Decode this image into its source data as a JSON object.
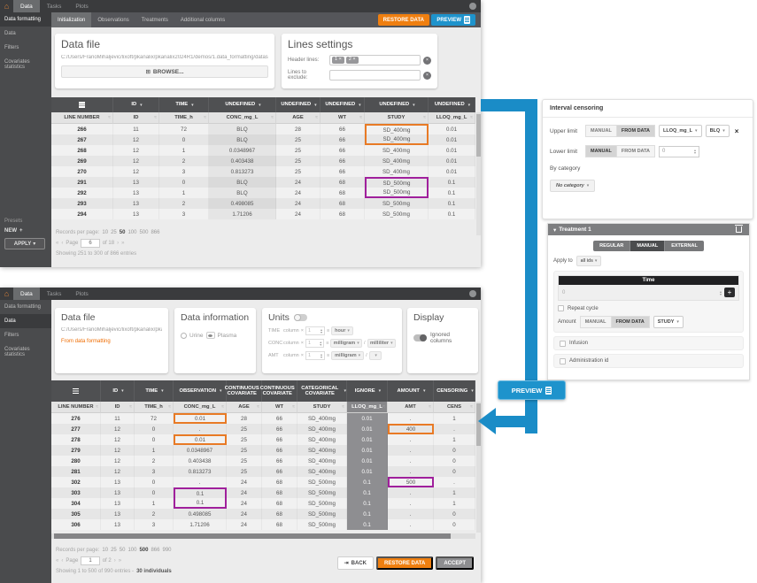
{
  "colors": {
    "orange": "#ef7f10",
    "blue": "#1e93cc",
    "arrow_blue": "#1a8cc7",
    "highlight_orange": "#e87a25",
    "highlight_purple": "#a0209c"
  },
  "topbar": {
    "home_icon": "⌂",
    "tabs": [
      "Data",
      "Tasks",
      "Plots"
    ],
    "active_tab": "Data"
  },
  "nav": {
    "first": "«",
    "prev": "‹",
    "next": "›",
    "last": "»"
  },
  "top_panel": {
    "sidebar": {
      "items": [
        "Data formatting",
        "Data",
        "Filters",
        "Covariates statistics"
      ],
      "active": "Data formatting",
      "presets_label": "Presets",
      "new_label": "NEW",
      "new_plus": "+",
      "apply_label": "APPLY",
      "apply_caret": "▾"
    },
    "subtabs": {
      "items": [
        "Initialization",
        "Observations",
        "Treatments",
        "Additional columns"
      ],
      "active": "Initialization"
    },
    "restore_label": "RESTORE DATA",
    "preview_label": "PREVIEW",
    "data_file": {
      "title": "Data file",
      "path": "C:/Users/FranoMihaljevic/lixoft/pkanalix/pkanalix2024R1/demos/1.data_formatting/datasets/units_BLQ_tags_data...",
      "browse_icon": "⊞",
      "browse_label": "BROWSE..."
    },
    "lines_settings": {
      "title": "Lines settings",
      "header_lines_label": "Header lines:",
      "header_chips": [
        "1 ×",
        "2 ×"
      ],
      "exclude_label": "Lines to exclude:",
      "clear_icon": "×"
    },
    "table": {
      "group_headers": [
        {
          "icon": "menu",
          "caret": false
        },
        {
          "label": "ID",
          "caret": true
        },
        {
          "label": "TIME",
          "caret": true
        },
        {
          "label": "UNDEFINED",
          "caret": true
        },
        {
          "label": "UNDEFINED",
          "caret": true
        },
        {
          "label": "UNDEFINED",
          "caret": true
        },
        {
          "label": "UNDEFINED",
          "caret": true
        },
        {
          "label": "UNDEFINED",
          "caret": true
        }
      ],
      "columns": [
        "LINE NUMBER",
        "ID",
        "TIME_h",
        "CONC_mg_L",
        "AGE",
        "WT",
        "STUDY",
        "LLOQ_mg_L"
      ],
      "filter_icon": "≈",
      "rows": [
        {
          "cells": [
            "266",
            "11",
            "72",
            "BLQ",
            "28",
            "66",
            "SD_400mg",
            "0.01"
          ],
          "hl": {
            "6": "o-t"
          }
        },
        {
          "cells": [
            "267",
            "12",
            "0",
            "BLQ",
            "25",
            "66",
            "SD_400mg",
            "0.01"
          ],
          "hl": {
            "6": "o-b"
          }
        },
        {
          "cells": [
            "268",
            "12",
            "1",
            "0.0348967",
            "25",
            "66",
            "SD_400mg",
            "0.01"
          ]
        },
        {
          "cells": [
            "269",
            "12",
            "2",
            "0.403438",
            "25",
            "66",
            "SD_400mg",
            "0.01"
          ]
        },
        {
          "cells": [
            "270",
            "12",
            "3",
            "0.813273",
            "25",
            "66",
            "SD_400mg",
            "0.01"
          ]
        },
        {
          "cells": [
            "291",
            "13",
            "0",
            "BLQ",
            "24",
            "68",
            "SD_500mg",
            "0.1"
          ],
          "hl": {
            "6": "p-t"
          }
        },
        {
          "cells": [
            "292",
            "13",
            "1",
            "BLQ",
            "24",
            "68",
            "SD_500mg",
            "0.1"
          ],
          "hl": {
            "6": "p-b"
          }
        },
        {
          "cells": [
            "293",
            "13",
            "2",
            "0.498085",
            "24",
            "68",
            "SD_500mg",
            "0.1"
          ]
        },
        {
          "cells": [
            "294",
            "13",
            "3",
            "1.71206",
            "24",
            "68",
            "SD_500mg",
            "0.1"
          ]
        }
      ]
    },
    "footer": {
      "records_label": "Records per page:",
      "options": [
        "10",
        "25",
        "50",
        "100",
        "500",
        "866"
      ],
      "current": "50",
      "page_label": "Page",
      "page_value": "6",
      "of_label": "of 18",
      "showing": "Showing 251 to 300 of 866 entries"
    }
  },
  "bottom_panel": {
    "sidebar": {
      "items": [
        "Data formatting",
        "Data",
        "Filters",
        "Covariates statistics"
      ],
      "active": "Data"
    },
    "data_file": {
      "title": "Data file",
      "path": "C:/Users/FranoMihaljevic/lixoft/pkanalix/pkanal...",
      "note": "From data formatting"
    },
    "data_information": {
      "title": "Data information",
      "radios": [
        {
          "label": "Urine",
          "selected": false
        },
        {
          "label": "Plasma",
          "selected": true
        }
      ]
    },
    "units": {
      "title": "Units",
      "column_word": "column",
      "times": "×",
      "equals": "≡",
      "slash": "/",
      "caret": "▾",
      "rows": [
        {
          "name": "TIME",
          "value": "1",
          "num": "hour",
          "den": null
        },
        {
          "name": "CONC",
          "value": "1",
          "num": "milligram",
          "den": "milliliter"
        },
        {
          "name": "AMT",
          "value": "1",
          "num": "milligram",
          "den": ""
        }
      ]
    },
    "display": {
      "title": "Display",
      "toggle_label": "Ignored columns"
    },
    "table": {
      "group_headers": [
        {
          "icon": "menu",
          "caret": false
        },
        {
          "label": "ID",
          "caret": true
        },
        {
          "label": "TIME",
          "caret": true
        },
        {
          "label": "OBSERVATION",
          "caret": true
        },
        {
          "label": "CONTINUOUS COVARIATE",
          "caret": true
        },
        {
          "label": "CONTINUOUS COVARIATE",
          "caret": true
        },
        {
          "label": "CATEGORICAL COVARIATE",
          "caret": true
        },
        {
          "label": "IGNORE",
          "caret": true
        },
        {
          "label": "AMOUNT",
          "caret": true
        },
        {
          "label": "CENSORING",
          "caret": true
        }
      ],
      "columns": [
        "LINE NUMBER",
        "ID",
        "TIME_h",
        "CONC_mg_L",
        "AGE",
        "WT",
        "STUDY",
        "LLOQ_mg_L",
        "AMT",
        "CENS"
      ],
      "filter_icon": "≈",
      "rows": [
        {
          "cells": [
            "276",
            "11",
            "72",
            "0.01",
            "28",
            "66",
            "SD_400mg",
            "0.01",
            ".",
            "1"
          ],
          "hl": {
            "3": "o"
          }
        },
        {
          "cells": [
            "277",
            "12",
            "0",
            ".",
            "25",
            "66",
            "SD_400mg",
            "0.01",
            "400",
            "."
          ],
          "hl": {
            "8": "o"
          }
        },
        {
          "cells": [
            "278",
            "12",
            "0",
            "0.01",
            "25",
            "66",
            "SD_400mg",
            "0.01",
            ".",
            "1"
          ],
          "hl": {
            "3": "o"
          }
        },
        {
          "cells": [
            "279",
            "12",
            "1",
            "0.0348967",
            "25",
            "66",
            "SD_400mg",
            "0.01",
            ".",
            "0"
          ]
        },
        {
          "cells": [
            "280",
            "12",
            "2",
            "0.403438",
            "25",
            "66",
            "SD_400mg",
            "0.01",
            ".",
            "0"
          ]
        },
        {
          "cells": [
            "281",
            "12",
            "3",
            "0.813273",
            "25",
            "66",
            "SD_400mg",
            "0.01",
            ".",
            "0"
          ]
        },
        {
          "cells": [
            "302",
            "13",
            "0",
            ".",
            "24",
            "68",
            "SD_500mg",
            "0.1",
            "500",
            "."
          ],
          "hl": {
            "8": "p"
          }
        },
        {
          "cells": [
            "303",
            "13",
            "0",
            "0.1",
            "24",
            "68",
            "SD_500mg",
            "0.1",
            ".",
            "1"
          ],
          "hl": {
            "3": "p-t"
          }
        },
        {
          "cells": [
            "304",
            "13",
            "1",
            "0.1",
            "24",
            "68",
            "SD_500mg",
            "0.1",
            ".",
            "1"
          ],
          "hl": {
            "3": "p-b"
          }
        },
        {
          "cells": [
            "305",
            "13",
            "2",
            "0.498085",
            "24",
            "68",
            "SD_500mg",
            "0.1",
            ".",
            "0"
          ]
        },
        {
          "cells": [
            "306",
            "13",
            "3",
            "1.71206",
            "24",
            "68",
            "SD_500mg",
            "0.1",
            ".",
            "0"
          ]
        }
      ]
    },
    "footer": {
      "records_label": "Records per page:",
      "options": [
        "10",
        "25",
        "50",
        "100",
        "500",
        "866",
        "990"
      ],
      "current": "500",
      "page_label": "Page",
      "page_value": "1",
      "of_label": "of 2",
      "showing": "Showing 1 to 500 of 990 entries - ",
      "individuals": "30 individuals"
    },
    "buttons": {
      "back_icon": "⇥",
      "back": "BACK",
      "restore": "RESTORE DATA",
      "accept": "ACCEPT"
    }
  },
  "interval_censoring": {
    "title": "Interval censoring",
    "upper": {
      "label": "Upper limit",
      "manual": "MANUAL",
      "from_data": "FROM DATA",
      "active": "FROM DATA",
      "column_select": "LLOQ_mg_L",
      "value_select": "BLQ",
      "caret": "▾",
      "close_icon": "×"
    },
    "lower": {
      "label": "Lower limit",
      "manual": "MANUAL",
      "from_data": "FROM DATA",
      "active": "MANUAL",
      "value": "0"
    },
    "by_category": {
      "label": "By category",
      "select": "No category",
      "caret": "▾"
    }
  },
  "treatment": {
    "header": {
      "caret": "▾",
      "title": "Treatment 1"
    },
    "modes": {
      "items": [
        "REGULAR",
        "MANUAL",
        "EXTERNAL"
      ],
      "active": "MANUAL"
    },
    "apply_to": {
      "label": "Apply to",
      "value": "all ids",
      "caret": "▾"
    },
    "time_block": {
      "header": "Time",
      "value": "0",
      "add_label": "+"
    },
    "repeat_cycle_label": "Repeat cycle",
    "amount": {
      "label": "Amount",
      "manual": "MANUAL",
      "from_data": "FROM DATA",
      "active": "FROM DATA",
      "study": "STUDY",
      "caret": "▾"
    },
    "infusion_label": "Infusion",
    "admin_id_label": "Administration id"
  },
  "flow": {
    "preview_label": "PREVIEW"
  }
}
